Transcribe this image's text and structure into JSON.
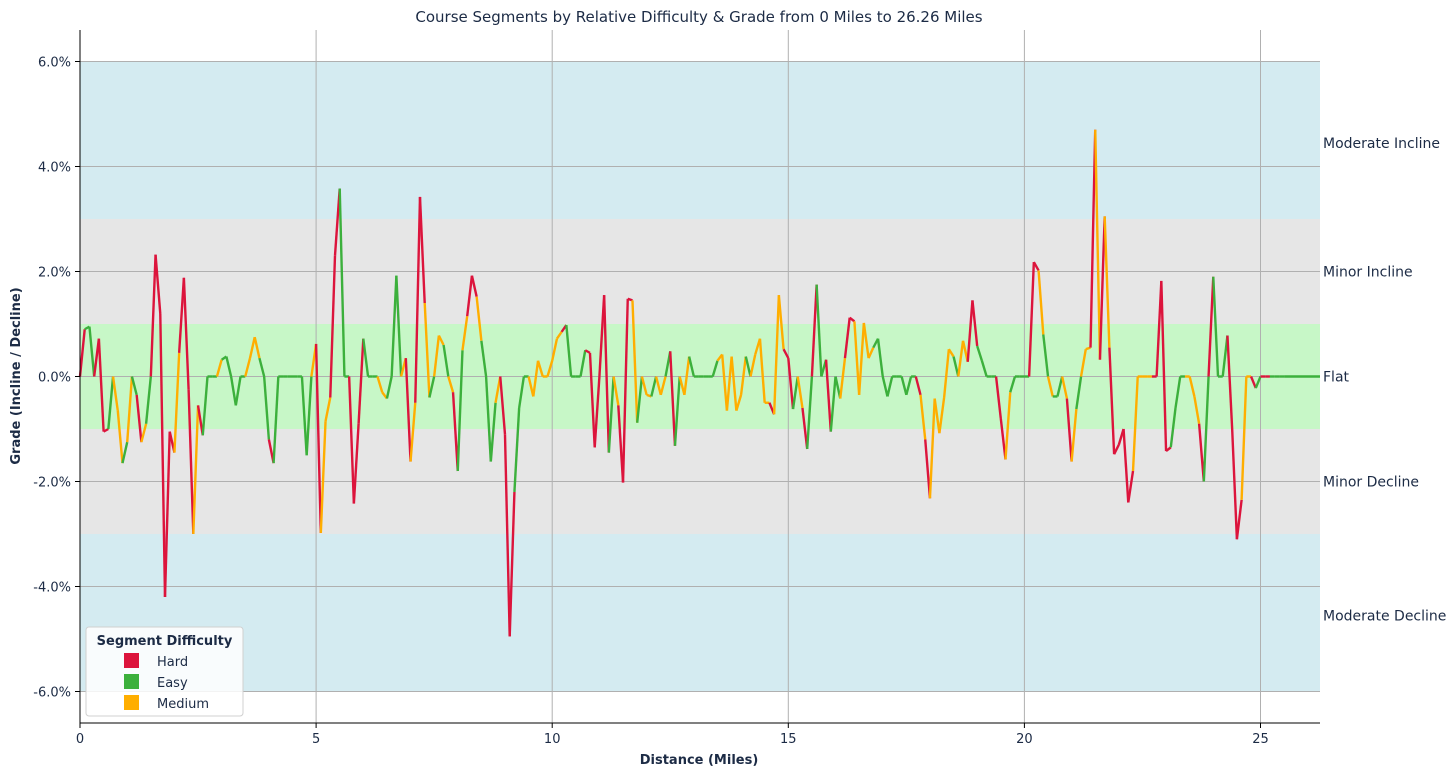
{
  "chart_data": {
    "type": "line",
    "title": "Course Segments by Relative Difficulty & Grade from 0 Miles to 26.26 Miles",
    "xlabel": "Distance (Miles)",
    "ylabel": "Grade (Incline / Decline)",
    "xlim": [
      0,
      26.26
    ],
    "ylim": [
      -6.6,
      6.6
    ],
    "x_ticks": [
      0,
      5,
      10,
      15,
      20,
      25
    ],
    "y_ticks": [
      {
        "value": 6,
        "label": "6.0%"
      },
      {
        "value": 4,
        "label": "4.0%"
      },
      {
        "value": 2,
        "label": "2.0%"
      },
      {
        "value": 0,
        "label": "0.0%"
      },
      {
        "value": -2,
        "label": "-2.0%"
      },
      {
        "value": -4,
        "label": "-4.0%"
      },
      {
        "value": -6,
        "label": "-6.0%"
      }
    ],
    "grid": true,
    "bands": [
      {
        "label": "Moderate Incline",
        "from": 3,
        "to": 6,
        "label_y": 4.45,
        "color": "#d4ebf1"
      },
      {
        "label": "Minor Incline",
        "from": 1,
        "to": 3,
        "label_y": 2.0,
        "color": "#e6e6e6"
      },
      {
        "label": "Flat",
        "from": -1,
        "to": 1,
        "label_y": 0.0,
        "color": "#c7f7c7"
      },
      {
        "label": "Minor Decline",
        "from": -3,
        "to": -1,
        "label_y": -2.0,
        "color": "#e6e6e6"
      },
      {
        "label": "Moderate Decline",
        "from": -6,
        "to": -3,
        "label_y": -4.55,
        "color": "#d4ebf1"
      }
    ],
    "legend": {
      "title": "Segment Difficulty",
      "placement": "bottom-left",
      "entries": [
        {
          "label": "Hard",
          "color": "#dc143c"
        },
        {
          "label": "Easy",
          "color": "#3cb03c"
        },
        {
          "label": "Medium",
          "color": "#ffae00"
        }
      ]
    },
    "colors": {
      "H": "#dc143c",
      "E": "#3cb03c",
      "M": "#ffae00"
    },
    "points": [
      [
        0,
        0,
        "H"
      ],
      [
        0.1,
        0.9,
        "E"
      ],
      [
        0.2,
        0.95,
        "E"
      ],
      [
        0.3,
        0,
        "H"
      ],
      [
        0.4,
        0.72,
        "H"
      ],
      [
        0.5,
        -1.05,
        "H"
      ],
      [
        0.6,
        -1.0,
        "E"
      ],
      [
        0.7,
        0,
        "M"
      ],
      [
        0.8,
        -0.65,
        "M"
      ],
      [
        0.9,
        -1.65,
        "E"
      ],
      [
        1.0,
        -1.25,
        "M"
      ],
      [
        1.1,
        0,
        "E"
      ],
      [
        1.2,
        -0.35,
        "H"
      ],
      [
        1.3,
        -1.25,
        "M"
      ],
      [
        1.4,
        -0.9,
        "E"
      ],
      [
        1.5,
        0,
        "H"
      ],
      [
        1.6,
        2.32,
        "H"
      ],
      [
        1.7,
        1.2,
        "H"
      ],
      [
        1.8,
        -4.2,
        "H"
      ],
      [
        1.9,
        -1.05,
        "H"
      ],
      [
        2.0,
        -1.45,
        "M"
      ],
      [
        2.1,
        0.45,
        "H"
      ],
      [
        2.2,
        1.88,
        "H"
      ],
      [
        2.3,
        -0.25,
        "H"
      ],
      [
        2.4,
        -3.0,
        "M"
      ],
      [
        2.5,
        -0.55,
        "H"
      ],
      [
        2.6,
        -1.12,
        "E"
      ],
      [
        2.7,
        0,
        "E"
      ],
      [
        2.8,
        0,
        "E"
      ],
      [
        2.9,
        0,
        "M"
      ],
      [
        3.0,
        0.32,
        "E"
      ],
      [
        3.1,
        0.38,
        "E"
      ],
      [
        3.2,
        0,
        "E"
      ],
      [
        3.3,
        -0.55,
        "E"
      ],
      [
        3.4,
        0,
        "E"
      ],
      [
        3.5,
        0,
        "M"
      ],
      [
        3.6,
        0.35,
        "M"
      ],
      [
        3.7,
        0.75,
        "M"
      ],
      [
        3.8,
        0.35,
        "E"
      ],
      [
        3.9,
        0,
        "E"
      ],
      [
        4.0,
        -1.2,
        "H"
      ],
      [
        4.1,
        -1.65,
        "E"
      ],
      [
        4.2,
        0,
        "E"
      ],
      [
        4.3,
        0,
        "E"
      ],
      [
        4.4,
        0,
        "E"
      ],
      [
        4.6,
        0,
        "E"
      ],
      [
        4.7,
        0,
        "E"
      ],
      [
        4.8,
        -1.5,
        "E"
      ],
      [
        4.9,
        0,
        "M"
      ],
      [
        5.0,
        0.62,
        "H"
      ],
      [
        5.1,
        -2.98,
        "M"
      ],
      [
        5.2,
        -0.85,
        "M"
      ],
      [
        5.3,
        -0.4,
        "H"
      ],
      [
        5.4,
        2.3,
        "H"
      ],
      [
        5.5,
        3.58,
        "E"
      ],
      [
        5.6,
        0,
        "E"
      ],
      [
        5.7,
        0,
        "H"
      ],
      [
        5.8,
        -2.42,
        "H"
      ],
      [
        5.9,
        -0.9,
        "H"
      ],
      [
        6.0,
        0.72,
        "E"
      ],
      [
        6.1,
        0,
        "E"
      ],
      [
        6.2,
        0,
        "E"
      ],
      [
        6.3,
        0,
        "M"
      ],
      [
        6.4,
        -0.3,
        "M"
      ],
      [
        6.5,
        -0.42,
        "E"
      ],
      [
        6.6,
        0,
        "E"
      ],
      [
        6.7,
        1.92,
        "E"
      ],
      [
        6.8,
        0,
        "M"
      ],
      [
        6.9,
        0.35,
        "H"
      ],
      [
        7.0,
        -1.62,
        "M"
      ],
      [
        7.1,
        -0.5,
        "H"
      ],
      [
        7.2,
        3.42,
        "H"
      ],
      [
        7.3,
        1.4,
        "M"
      ],
      [
        7.4,
        -0.4,
        "E"
      ],
      [
        7.5,
        0,
        "M"
      ],
      [
        7.6,
        0.78,
        "M"
      ],
      [
        7.7,
        0.6,
        "E"
      ],
      [
        7.8,
        0,
        "M"
      ],
      [
        7.9,
        -0.3,
        "H"
      ],
      [
        8.0,
        -1.8,
        "E"
      ],
      [
        8.1,
        0.5,
        "M"
      ],
      [
        8.2,
        1.15,
        "H"
      ],
      [
        8.3,
        1.92,
        "H"
      ],
      [
        8.4,
        1.52,
        "M"
      ],
      [
        8.5,
        0.68,
        "E"
      ],
      [
        8.6,
        0,
        "E"
      ],
      [
        8.7,
        -1.62,
        "E"
      ],
      [
        8.8,
        -0.5,
        "M"
      ],
      [
        8.9,
        0,
        "H"
      ],
      [
        9.0,
        -1.1,
        "H"
      ],
      [
        9.1,
        -4.95,
        "H"
      ],
      [
        9.2,
        -2.2,
        "E"
      ],
      [
        9.3,
        -0.6,
        "E"
      ],
      [
        9.4,
        0,
        "E"
      ],
      [
        9.5,
        0,
        "M"
      ],
      [
        9.6,
        -0.38,
        "M"
      ],
      [
        9.7,
        0.3,
        "M"
      ],
      [
        9.8,
        0,
        "M"
      ],
      [
        9.9,
        0,
        "M"
      ],
      [
        10.0,
        0.3,
        "M"
      ],
      [
        10.1,
        0.72,
        "M"
      ],
      [
        10.2,
        0.85,
        "H"
      ],
      [
        10.3,
        0.98,
        "E"
      ],
      [
        10.4,
        0,
        "E"
      ],
      [
        10.5,
        0,
        "E"
      ],
      [
        10.6,
        0,
        "E"
      ],
      [
        10.7,
        0.5,
        "H"
      ],
      [
        10.8,
        0.45,
        "H"
      ],
      [
        10.9,
        -1.35,
        "H"
      ],
      [
        11.0,
        0,
        "H"
      ],
      [
        11.1,
        1.55,
        "H"
      ],
      [
        11.2,
        -1.45,
        "E"
      ],
      [
        11.3,
        0,
        "M"
      ],
      [
        11.4,
        -0.55,
        "H"
      ],
      [
        11.5,
        -2.02,
        "H"
      ],
      [
        11.6,
        1.48,
        "H"
      ],
      [
        11.7,
        1.45,
        "M"
      ],
      [
        11.8,
        -0.88,
        "E"
      ],
      [
        11.9,
        0,
        "M"
      ],
      [
        12.0,
        -0.35,
        "M"
      ],
      [
        12.1,
        -0.38,
        "E"
      ],
      [
        12.2,
        0,
        "M"
      ],
      [
        12.3,
        -0.35,
        "M"
      ],
      [
        12.4,
        0,
        "E"
      ],
      [
        12.5,
        0.48,
        "H"
      ],
      [
        12.6,
        -1.32,
        "E"
      ],
      [
        12.7,
        0,
        "M"
      ],
      [
        12.8,
        -0.35,
        "M"
      ],
      [
        12.9,
        0.38,
        "E"
      ],
      [
        13.0,
        0,
        "E"
      ],
      [
        13.1,
        0,
        "E"
      ],
      [
        13.2,
        0,
        "E"
      ],
      [
        13.3,
        0,
        "E"
      ],
      [
        13.4,
        0,
        "E"
      ],
      [
        13.5,
        0.3,
        "M"
      ],
      [
        13.6,
        0.42,
        "M"
      ],
      [
        13.7,
        -0.65,
        "M"
      ],
      [
        13.8,
        0.38,
        "M"
      ],
      [
        13.9,
        -0.65,
        "M"
      ],
      [
        14.0,
        -0.35,
        "M"
      ],
      [
        14.1,
        0.38,
        "E"
      ],
      [
        14.2,
        0,
        "M"
      ],
      [
        14.3,
        0.42,
        "M"
      ],
      [
        14.4,
        0.72,
        "M"
      ],
      [
        14.5,
        -0.5,
        "M"
      ],
      [
        14.6,
        -0.5,
        "H"
      ],
      [
        14.7,
        -0.72,
        "M"
      ],
      [
        14.8,
        1.55,
        "M"
      ],
      [
        14.9,
        0.52,
        "H"
      ],
      [
        15.0,
        0.35,
        "H"
      ],
      [
        15.1,
        -0.62,
        "E"
      ],
      [
        15.2,
        0,
        "M"
      ],
      [
        15.3,
        -0.6,
        "H"
      ],
      [
        15.4,
        -1.38,
        "E"
      ],
      [
        15.5,
        0,
        "H"
      ],
      [
        15.6,
        1.75,
        "E"
      ],
      [
        15.7,
        0,
        "E"
      ],
      [
        15.8,
        0.32,
        "H"
      ],
      [
        15.9,
        -1.05,
        "E"
      ],
      [
        16.0,
        0,
        "E"
      ],
      [
        16.1,
        -0.42,
        "M"
      ],
      [
        16.2,
        0.35,
        "H"
      ],
      [
        16.3,
        1.12,
        "H"
      ],
      [
        16.4,
        1.05,
        "M"
      ],
      [
        16.5,
        -0.35,
        "M"
      ],
      [
        16.6,
        1.02,
        "M"
      ],
      [
        16.7,
        0.35,
        "M"
      ],
      [
        16.8,
        0.55,
        "E"
      ],
      [
        16.9,
        0.72,
        "E"
      ],
      [
        17.0,
        0,
        "E"
      ],
      [
        17.1,
        -0.38,
        "E"
      ],
      [
        17.2,
        0,
        "E"
      ],
      [
        17.3,
        0,
        "E"
      ],
      [
        17.4,
        0,
        "E"
      ],
      [
        17.5,
        -0.35,
        "E"
      ],
      [
        17.6,
        0,
        "E"
      ],
      [
        17.7,
        0,
        "H"
      ],
      [
        17.8,
        -0.35,
        "M"
      ],
      [
        17.9,
        -1.2,
        "H"
      ],
      [
        18.0,
        -2.32,
        "M"
      ],
      [
        18.1,
        -0.42,
        "M"
      ],
      [
        18.2,
        -1.08,
        "M"
      ],
      [
        18.3,
        -0.4,
        "M"
      ],
      [
        18.4,
        0.52,
        "M"
      ],
      [
        18.5,
        0.38,
        "E"
      ],
      [
        18.6,
        0,
        "M"
      ],
      [
        18.7,
        0.68,
        "M"
      ],
      [
        18.8,
        0.28,
        "H"
      ],
      [
        18.9,
        1.45,
        "H"
      ],
      [
        19.0,
        0.58,
        "E"
      ],
      [
        19.1,
        0.3,
        "E"
      ],
      [
        19.2,
        0,
        "E"
      ],
      [
        19.3,
        0,
        "E"
      ],
      [
        19.4,
        0,
        "H"
      ],
      [
        19.5,
        -0.8,
        "H"
      ],
      [
        19.6,
        -1.58,
        "M"
      ],
      [
        19.7,
        -0.3,
        "E"
      ],
      [
        19.8,
        0,
        "E"
      ],
      [
        19.9,
        0,
        "E"
      ],
      [
        20.0,
        0,
        "E"
      ],
      [
        20.1,
        0,
        "H"
      ],
      [
        20.2,
        2.18,
        "H"
      ],
      [
        20.3,
        2.02,
        "M"
      ],
      [
        20.4,
        0.8,
        "E"
      ],
      [
        20.5,
        0,
        "M"
      ],
      [
        20.6,
        -0.38,
        "E"
      ],
      [
        20.7,
        -0.38,
        "E"
      ],
      [
        20.8,
        0,
        "M"
      ],
      [
        20.9,
        -0.42,
        "H"
      ],
      [
        21.0,
        -1.62,
        "M"
      ],
      [
        21.1,
        -0.62,
        "E"
      ],
      [
        21.2,
        0,
        "M"
      ],
      [
        21.3,
        0.52,
        "M"
      ],
      [
        21.4,
        0.55,
        "H"
      ],
      [
        21.5,
        4.7,
        "M"
      ],
      [
        21.6,
        0.32,
        "H"
      ],
      [
        21.7,
        3.05,
        "M"
      ],
      [
        21.8,
        0.55,
        "H"
      ],
      [
        21.9,
        -1.48,
        "H"
      ],
      [
        22.0,
        -1.3,
        "H"
      ],
      [
        22.1,
        -1.0,
        "H"
      ],
      [
        22.2,
        -2.4,
        "H"
      ],
      [
        22.3,
        -1.8,
        "M"
      ],
      [
        22.4,
        0,
        "M"
      ],
      [
        22.5,
        0,
        "M"
      ],
      [
        22.6,
        0,
        "M"
      ],
      [
        22.7,
        0,
        "H"
      ],
      [
        22.8,
        0,
        "H"
      ],
      [
        22.9,
        1.82,
        "H"
      ],
      [
        23.0,
        -1.42,
        "H"
      ],
      [
        23.1,
        -1.35,
        "E"
      ],
      [
        23.2,
        -0.6,
        "E"
      ],
      [
        23.3,
        0,
        "E"
      ],
      [
        23.4,
        0,
        "M"
      ],
      [
        23.5,
        0,
        "M"
      ],
      [
        23.6,
        -0.38,
        "M"
      ],
      [
        23.7,
        -0.9,
        "H"
      ],
      [
        23.8,
        -2.0,
        "E"
      ],
      [
        23.9,
        0,
        "H"
      ],
      [
        24.0,
        1.9,
        "E"
      ],
      [
        24.1,
        0,
        "E"
      ],
      [
        24.2,
        0,
        "E"
      ],
      [
        24.3,
        0.78,
        "H"
      ],
      [
        24.4,
        -1.0,
        "H"
      ],
      [
        24.5,
        -3.1,
        "H"
      ],
      [
        24.6,
        -2.35,
        "M"
      ],
      [
        24.7,
        0,
        "M"
      ],
      [
        24.8,
        0,
        "H"
      ],
      [
        24.9,
        -0.22,
        "E"
      ],
      [
        25.0,
        0,
        "H"
      ],
      [
        25.1,
        0,
        "H"
      ],
      [
        25.2,
        0,
        "E"
      ],
      [
        25.3,
        0,
        "E"
      ],
      [
        25.4,
        0,
        "E"
      ],
      [
        25.5,
        0,
        "E"
      ],
      [
        26.26,
        0,
        "E"
      ]
    ]
  }
}
